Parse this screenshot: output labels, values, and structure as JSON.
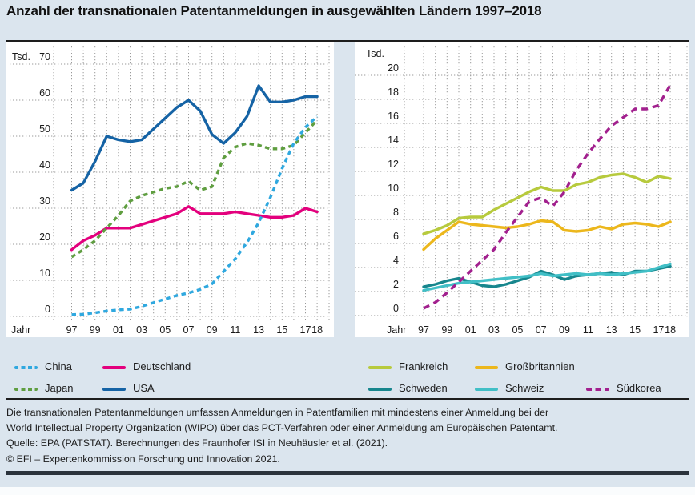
{
  "title": "Anzahl der transnationalen Patentanmeldungen in ausgewählten Ländern 1997–2018",
  "chart_data": [
    {
      "type": "line",
      "unit_label": "Tsd.",
      "x_axis_label": "Jahr",
      "years": [
        1997,
        1998,
        1999,
        2000,
        2001,
        2002,
        2003,
        2004,
        2005,
        2006,
        2007,
        2008,
        2009,
        2010,
        2011,
        2012,
        2013,
        2014,
        2015,
        2016,
        2017,
        2018
      ],
      "x_tick_labels": [
        "97",
        "99",
        "01",
        "03",
        "05",
        "07",
        "09",
        "11",
        "13",
        "15",
        "17",
        "18"
      ],
      "x_tick_year_indices": [
        0,
        2,
        4,
        6,
        8,
        10,
        12,
        14,
        16,
        18,
        20,
        21
      ],
      "y_ticks": [
        0,
        10,
        20,
        30,
        40,
        50,
        60,
        70
      ],
      "ylim": [
        0,
        70
      ],
      "grid": true,
      "series": [
        {
          "name": "China",
          "color": "#2fa8df",
          "style": "dashed-short",
          "values": [
            0.5,
            0.6,
            1.0,
            1.5,
            1.8,
            2.0,
            2.8,
            3.8,
            4.8,
            5.8,
            6.5,
            7.5,
            9.0,
            12.5,
            16.0,
            20.5,
            26.0,
            33.0,
            41.0,
            48.0,
            52.5,
            55.5
          ]
        },
        {
          "name": "Deutschland",
          "color": "#e3007d",
          "style": "solid",
          "values": [
            18.5,
            21.0,
            22.5,
            24.5,
            24.5,
            24.5,
            25.5,
            26.5,
            27.5,
            28.5,
            30.5,
            28.5,
            28.5,
            28.5,
            29.0,
            28.5,
            28.0,
            27.5,
            27.5,
            28.0,
            30.0,
            29.0
          ]
        },
        {
          "name": "Japan",
          "color": "#5f9e40",
          "style": "dashed-short",
          "values": [
            16.5,
            18.5,
            21.0,
            24.5,
            28.0,
            32.0,
            33.5,
            34.5,
            35.5,
            36.0,
            37.5,
            35.0,
            36.0,
            44.0,
            47.0,
            48.0,
            47.5,
            46.5,
            46.5,
            47.5,
            51.0,
            54.5
          ]
        },
        {
          "name": "USA",
          "color": "#1563a5",
          "style": "solid",
          "values": [
            35.0,
            37.0,
            43.0,
            50.0,
            49.0,
            48.5,
            49.0,
            52.0,
            55.0,
            58.0,
            60.0,
            57.0,
            50.5,
            48.0,
            51.0,
            55.5,
            64.0,
            59.5,
            59.5,
            60.0,
            61.0,
            61.0
          ]
        }
      ]
    },
    {
      "type": "line",
      "unit_label": "Tsd.",
      "x_axis_label": "Jahr",
      "years": [
        1997,
        1998,
        1999,
        2000,
        2001,
        2002,
        2003,
        2004,
        2005,
        2006,
        2007,
        2008,
        2009,
        2010,
        2011,
        2012,
        2013,
        2014,
        2015,
        2016,
        2017,
        2018
      ],
      "x_tick_labels": [
        "97",
        "99",
        "01",
        "03",
        "05",
        "07",
        "09",
        "11",
        "13",
        "15",
        "17",
        "18"
      ],
      "x_tick_year_indices": [
        0,
        2,
        4,
        6,
        8,
        10,
        12,
        14,
        16,
        18,
        20,
        21
      ],
      "y_ticks": [
        0,
        2,
        4,
        6,
        8,
        10,
        12,
        14,
        16,
        18,
        20
      ],
      "ylim": [
        0,
        20
      ],
      "grid": true,
      "series": [
        {
          "name": "Frankreich",
          "color": "#b7ca3d",
          "style": "solid",
          "values": [
            6.8,
            7.1,
            7.5,
            8.1,
            8.2,
            8.2,
            8.8,
            9.3,
            9.8,
            10.3,
            10.7,
            10.4,
            10.4,
            10.9,
            11.1,
            11.5,
            11.7,
            11.8,
            11.5,
            11.1,
            11.6,
            11.4
          ]
        },
        {
          "name": "Großbritannien",
          "color": "#ecb71c",
          "style": "solid",
          "values": [
            5.5,
            6.4,
            7.1,
            7.8,
            7.6,
            7.5,
            7.4,
            7.3,
            7.4,
            7.6,
            7.9,
            7.8,
            7.1,
            7.0,
            7.1,
            7.4,
            7.2,
            7.6,
            7.7,
            7.6,
            7.4,
            7.8
          ]
        },
        {
          "name": "Schweden",
          "color": "#17868d",
          "style": "solid",
          "values": [
            2.4,
            2.6,
            2.9,
            3.1,
            2.8,
            2.5,
            2.4,
            2.6,
            2.9,
            3.2,
            3.7,
            3.4,
            3.0,
            3.3,
            3.4,
            3.5,
            3.6,
            3.4,
            3.7,
            3.7,
            3.9,
            4.1
          ]
        },
        {
          "name": "Schweiz",
          "color": "#41bfc6",
          "style": "solid",
          "values": [
            2.1,
            2.3,
            2.5,
            2.7,
            2.8,
            2.9,
            3.0,
            3.1,
            3.2,
            3.3,
            3.5,
            3.3,
            3.4,
            3.5,
            3.4,
            3.5,
            3.4,
            3.5,
            3.6,
            3.7,
            4.0,
            4.3
          ]
        },
        {
          "name": "Südkorea",
          "color": "#a2208e",
          "style": "dashed-long",
          "values": [
            0.6,
            1.1,
            1.9,
            2.8,
            3.7,
            4.6,
            5.5,
            6.9,
            8.2,
            9.5,
            9.8,
            9.1,
            10.3,
            12.1,
            13.5,
            14.7,
            15.8,
            16.5,
            17.2,
            17.2,
            17.5,
            19.2
          ]
        }
      ]
    }
  ],
  "colors": {
    "page_background": "#dbe5ee",
    "plot_background": "#ffffff",
    "gridline": "#9a9a9a",
    "rule": "#1d1d1d",
    "bottom_bar": "#2b333c"
  },
  "footer": {
    "line1": "Die transnationalen Patentanmeldungen umfassen Anmeldungen in Patentfamilien mit mindestens einer Anmeldung bei der",
    "line2": "World Intellectual Property Organization (WIPO) über das PCT-Verfahren oder einer Anmeldung am Europäischen Patentamt.",
    "line3": "Quelle: EPA (PATSTAT). Berechnungen des Fraunhofer ISI in Neuhäusler et al. (2021).",
    "line4": "© EFI – Expertenkommission Forschung und Innovation 2021."
  }
}
